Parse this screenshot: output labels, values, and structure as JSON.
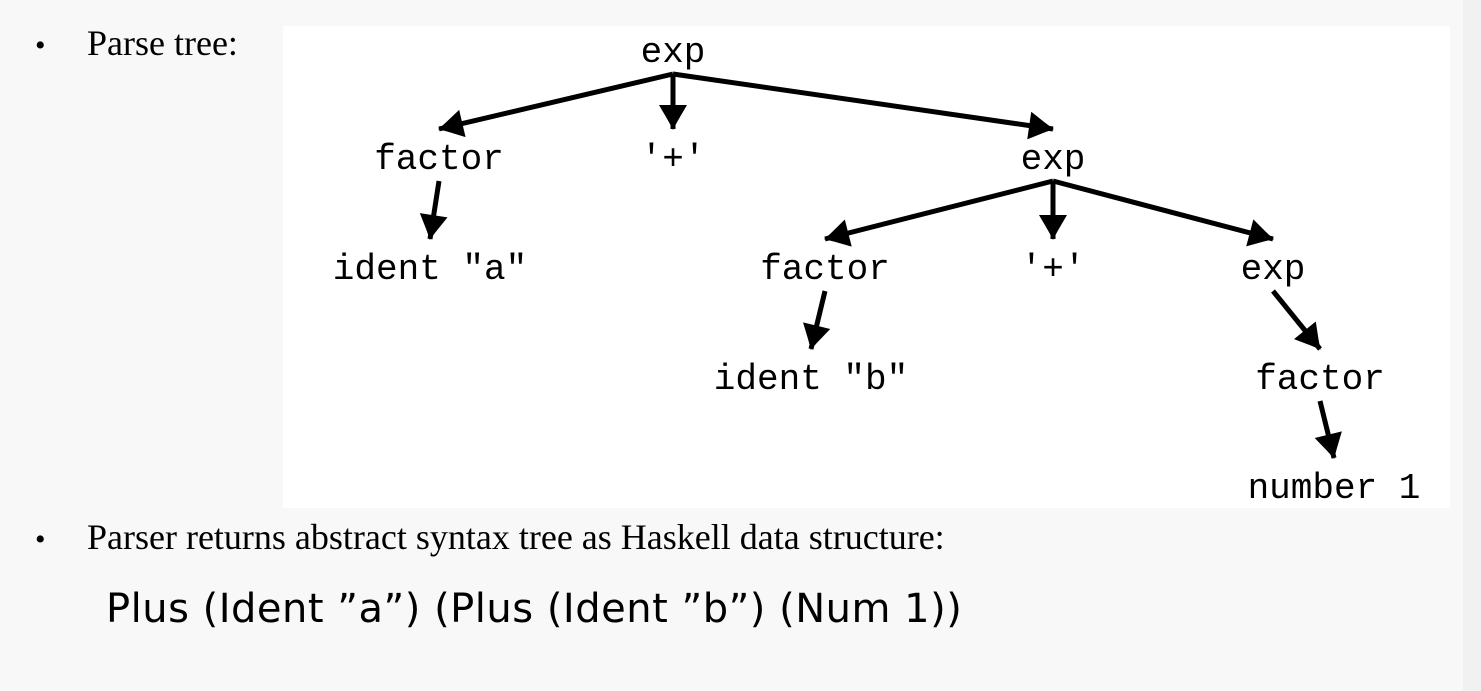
{
  "bullets": {
    "parse_tree_label": "Parse tree:",
    "parser_returns": "Parser returns abstract syntax tree as Haskell data structure:",
    "bullet_glyph": "•"
  },
  "ast_expression": "Plus (Ident ”a”) (Plus (Ident ”b”) (Num 1))",
  "tree": {
    "nodes": [
      {
        "id": "n-exp-root",
        "label": "exp"
      },
      {
        "id": "n-factor-1",
        "label": "factor"
      },
      {
        "id": "n-plus-1",
        "label": "'+'"
      },
      {
        "id": "n-exp-2",
        "label": "exp"
      },
      {
        "id": "n-ident-a",
        "label": "ident \"a\""
      },
      {
        "id": "n-factor-2",
        "label": "factor"
      },
      {
        "id": "n-plus-2",
        "label": "'+'"
      },
      {
        "id": "n-exp-3",
        "label": "exp"
      },
      {
        "id": "n-ident-b",
        "label": "ident \"b\""
      },
      {
        "id": "n-factor-3",
        "label": "factor"
      },
      {
        "id": "n-number-1",
        "label": "number 1"
      }
    ],
    "edges": [
      [
        "n-exp-root",
        "n-factor-1"
      ],
      [
        "n-exp-root",
        "n-plus-1"
      ],
      [
        "n-exp-root",
        "n-exp-2"
      ],
      [
        "n-factor-1",
        "n-ident-a"
      ],
      [
        "n-exp-2",
        "n-factor-2"
      ],
      [
        "n-exp-2",
        "n-plus-2"
      ],
      [
        "n-exp-2",
        "n-exp-3"
      ],
      [
        "n-factor-2",
        "n-ident-b"
      ],
      [
        "n-exp-3",
        "n-factor-3"
      ],
      [
        "n-factor-3",
        "n-number-1"
      ]
    ]
  }
}
